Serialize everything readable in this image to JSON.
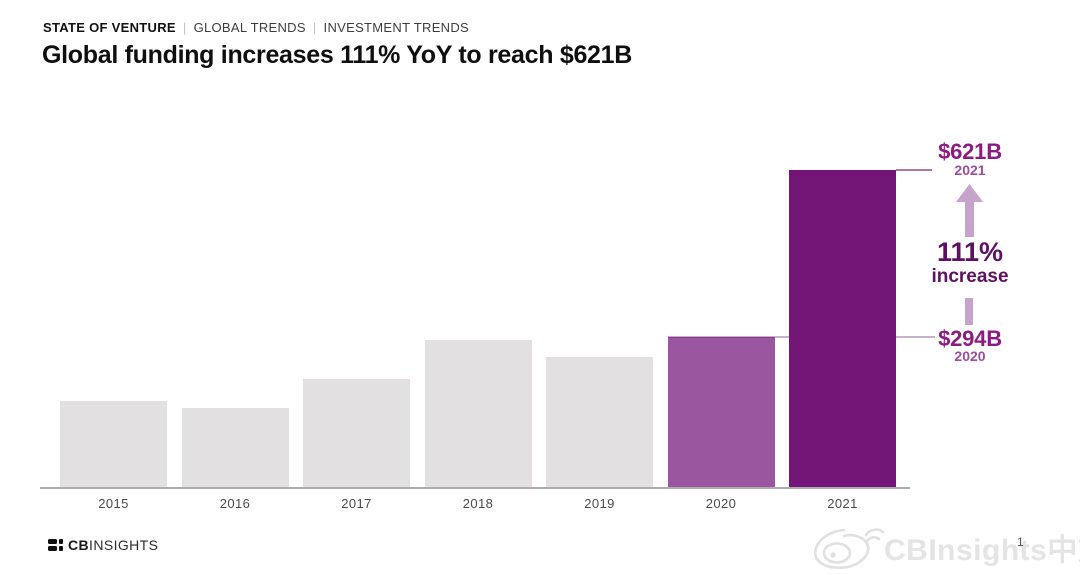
{
  "header": {
    "kicker": {
      "primary": "STATE OF VENTURE",
      "separator": "|",
      "secondary": "GLOBAL TRENDS",
      "tertiary": "INVESTMENT TRENDS"
    },
    "title": "Global funding increases 111% YoY to reach $621B"
  },
  "chart_data": {
    "type": "bar",
    "title": "Global funding increases 111% YoY to reach $621B",
    "categories": [
      "2015",
      "2016",
      "2017",
      "2018",
      "2019",
      "2020",
      "2021"
    ],
    "values": [
      170,
      156,
      213,
      289,
      256,
      294,
      621
    ],
    "unit": "$B",
    "ylim": [
      0,
      660
    ],
    "grid": false,
    "legend": false,
    "bar_colors": [
      "#e2e0e1",
      "#e2e0e1",
      "#e2e0e1",
      "#e2e0e1",
      "#e2e0e1",
      "#9a57a0",
      "#731477"
    ],
    "labeled_points": [
      {
        "category": "2020",
        "label": "$294B"
      },
      {
        "category": "2021",
        "label": "$621B"
      }
    ],
    "annotation": "111% increase from 2020 ($294B) to 2021 ($621B)"
  },
  "annotation": {
    "top_value": "$621B",
    "top_year": "2021",
    "pct": "111%",
    "pct_label": "increase",
    "bottom_value": "$294B",
    "bottom_year": "2020"
  },
  "footer": {
    "logo_bold": "CB",
    "logo_light": "INSIGHTS"
  },
  "watermark": {
    "text": "CBInsights中文",
    "page_number": "1",
    "weibo_icon": "weibo-outline"
  },
  "colors": {
    "annotation_magenta": "#8a1c80",
    "annotation_orchid": "#9a4e9e",
    "annotation_dark": "#5c1260",
    "arrow_light": "#c6a3cb",
    "tick_621": "rgba(110,30,110,0.6)",
    "tick_294": "rgba(92,18,96,0.33)",
    "bar_default": "#e2e0e1",
    "bar_2020": "#9a57a0",
    "bar_2021": "#731477",
    "axis_line": "#acacac"
  }
}
